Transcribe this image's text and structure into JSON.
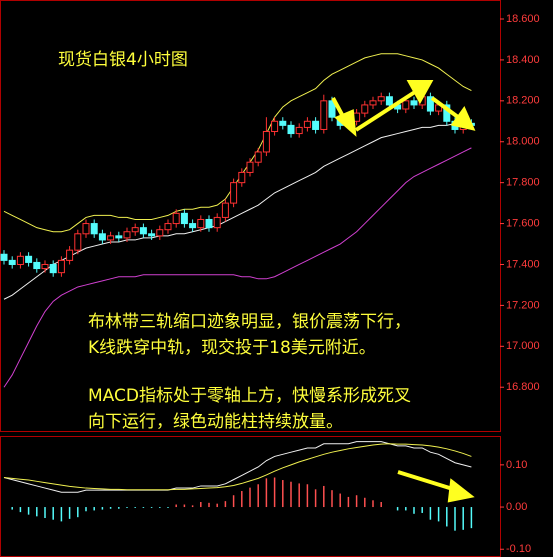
{
  "chart_data": [
    {
      "type": "candlestick",
      "title": "现货白银4小时图",
      "annotations": [
        "布林带三轨缩口迹象明显，银价震荡下行，",
        "K线跌穿中轨，现交投于18美元附近。",
        "MACD指标处于零轴上方，快慢系形成死叉",
        "向下运行，绿色动能柱持续放量。"
      ],
      "open": [
        17.45,
        17.42,
        17.4,
        17.44,
        17.41,
        17.38,
        17.4,
        17.36,
        17.42,
        17.47,
        17.55,
        17.6,
        17.55,
        17.52,
        17.54,
        17.53,
        17.56,
        17.58,
        17.55,
        17.54,
        17.57,
        17.6,
        17.65,
        17.6,
        17.58,
        17.62,
        17.58,
        17.63,
        17.7,
        17.8,
        17.85,
        17.9,
        17.95,
        18.05,
        18.1,
        18.08,
        18.04,
        18.07,
        18.1,
        18.06,
        18.2,
        18.12,
        18.08,
        18.1,
        18.14,
        18.18,
        18.2,
        18.22,
        18.18,
        18.16,
        18.2,
        18.18,
        18.22,
        18.15,
        18.18,
        18.1,
        18.06,
        18.09
      ],
      "high": [
        17.47,
        17.44,
        17.46,
        17.46,
        17.43,
        17.42,
        17.42,
        17.44,
        17.49,
        17.57,
        17.62,
        17.62,
        17.57,
        17.56,
        17.56,
        17.58,
        17.6,
        17.6,
        17.57,
        17.59,
        17.62,
        17.67,
        17.67,
        17.62,
        17.64,
        17.64,
        17.65,
        17.72,
        17.82,
        17.87,
        17.92,
        17.97,
        18.12,
        18.12,
        18.12,
        18.1,
        18.09,
        18.12,
        18.12,
        18.23,
        18.22,
        18.14,
        18.12,
        18.16,
        18.2,
        18.22,
        18.24,
        18.24,
        18.2,
        18.22,
        18.22,
        18.24,
        18.24,
        18.2,
        18.2,
        18.12,
        18.11,
        18.11
      ],
      "low": [
        17.4,
        17.38,
        17.38,
        17.39,
        17.36,
        17.36,
        17.34,
        17.34,
        17.4,
        17.45,
        17.53,
        17.53,
        17.5,
        17.5,
        17.51,
        17.51,
        17.54,
        17.53,
        17.52,
        17.52,
        17.55,
        17.58,
        17.58,
        17.56,
        17.56,
        17.56,
        17.56,
        17.61,
        17.68,
        17.78,
        17.83,
        17.88,
        17.93,
        18.03,
        18.06,
        18.02,
        18.02,
        18.05,
        18.04,
        18.04,
        18.1,
        18.06,
        18.06,
        18.08,
        18.12,
        18.16,
        18.18,
        18.16,
        18.14,
        18.14,
        18.16,
        18.16,
        18.13,
        18.13,
        18.08,
        18.04,
        18.04,
        18.06
      ],
      "close": [
        17.42,
        17.4,
        17.44,
        17.41,
        17.38,
        17.4,
        17.36,
        17.42,
        17.47,
        17.55,
        17.6,
        17.55,
        17.52,
        17.54,
        17.53,
        17.56,
        17.58,
        17.55,
        17.54,
        17.57,
        17.6,
        17.65,
        17.6,
        17.58,
        17.62,
        17.58,
        17.63,
        17.7,
        17.8,
        17.85,
        17.9,
        17.95,
        18.05,
        18.1,
        18.08,
        18.04,
        18.07,
        18.1,
        18.06,
        18.2,
        18.12,
        18.08,
        18.1,
        18.14,
        18.18,
        18.2,
        18.22,
        18.18,
        18.16,
        18.2,
        18.18,
        18.22,
        18.15,
        18.18,
        18.1,
        18.06,
        18.09,
        18.08
      ],
      "up_color": "#ff3232",
      "down_color": "#54fcfc",
      "series": [
        {
          "color": "#f0f050",
          "values": [
            17.66,
            17.64,
            17.62,
            17.6,
            17.58,
            17.57,
            17.56,
            17.56,
            17.57,
            17.6,
            17.63,
            17.64,
            17.64,
            17.64,
            17.63,
            17.63,
            17.62,
            17.62,
            17.62,
            17.63,
            17.64,
            17.66,
            17.67,
            17.67,
            17.68,
            17.68,
            17.69,
            17.72,
            17.78,
            17.84,
            17.9,
            17.96,
            18.04,
            18.12,
            18.17,
            18.2,
            18.22,
            18.24,
            18.26,
            18.3,
            18.33,
            18.35,
            18.37,
            18.39,
            18.41,
            18.42,
            18.43,
            18.43,
            18.43,
            18.42,
            18.41,
            18.4,
            18.38,
            18.36,
            18.33,
            18.3,
            18.27,
            18.25
          ]
        },
        {
          "color": "#f0f0f0",
          "values": [
            17.23,
            17.25,
            17.28,
            17.31,
            17.34,
            17.37,
            17.4,
            17.42,
            17.44,
            17.46,
            17.48,
            17.49,
            17.5,
            17.51,
            17.51,
            17.52,
            17.52,
            17.53,
            17.53,
            17.54,
            17.54,
            17.55,
            17.55,
            17.56,
            17.57,
            17.58,
            17.59,
            17.61,
            17.63,
            17.65,
            17.67,
            17.69,
            17.72,
            17.75,
            17.77,
            17.79,
            17.81,
            17.83,
            17.85,
            17.88,
            17.9,
            17.92,
            17.94,
            17.96,
            17.98,
            18.0,
            18.02,
            18.03,
            18.04,
            18.05,
            18.06,
            18.07,
            18.07,
            18.08,
            18.08,
            18.09,
            18.09,
            18.1
          ]
        },
        {
          "color": "#d040d0",
          "values": [
            16.8,
            16.86,
            16.94,
            17.02,
            17.1,
            17.17,
            17.22,
            17.25,
            17.27,
            17.29,
            17.3,
            17.31,
            17.32,
            17.33,
            17.34,
            17.34,
            17.34,
            17.35,
            17.35,
            17.35,
            17.35,
            17.35,
            17.35,
            17.35,
            17.35,
            17.35,
            17.35,
            17.35,
            17.35,
            17.34,
            17.34,
            17.33,
            17.33,
            17.34,
            17.36,
            17.38,
            17.4,
            17.42,
            17.44,
            17.46,
            17.48,
            17.5,
            17.53,
            17.56,
            17.6,
            17.64,
            17.68,
            17.72,
            17.76,
            17.8,
            17.83,
            17.85,
            17.87,
            17.89,
            17.91,
            17.93,
            17.95,
            17.97
          ]
        }
      ],
      "ylim": [
        16.586,
        18.688
      ],
      "yticks": [
        {
          "value": 16.8,
          "label": "16.800"
        },
        {
          "value": 17.0,
          "label": "17.000"
        },
        {
          "value": 17.2,
          "label": "17.200"
        },
        {
          "value": 17.4,
          "label": "17.400"
        },
        {
          "value": 17.6,
          "label": "17.600"
        },
        {
          "value": 17.8,
          "label": "17.800"
        },
        {
          "value": 18.0,
          "label": "18.000"
        },
        {
          "value": 18.2,
          "label": "18.200"
        },
        {
          "value": 18.4,
          "label": "18.400"
        },
        {
          "value": 18.6,
          "label": "18.600"
        }
      ]
    },
    {
      "type": "macd",
      "histogram": [
        0,
        -0.006,
        -0.012,
        -0.018,
        -0.022,
        -0.026,
        -0.03,
        -0.034,
        -0.028,
        -0.024,
        -0.01,
        -0.008,
        -0.006,
        -0.004,
        -0.004,
        -0.002,
        -0.002,
        -0.002,
        -0.002,
        -0.002,
        -0.002,
        0.006,
        0.006,
        0.004,
        0.012,
        0.01,
        0.008,
        0.014,
        0.028,
        0.038,
        0.046,
        0.054,
        0.068,
        0.07,
        0.064,
        0.06,
        0.056,
        0.054,
        0.042,
        0.05,
        0.04,
        0.032,
        0.024,
        0.028,
        0.022,
        0.016,
        0.012,
        0,
        -0.008,
        -0.008,
        -0.016,
        -0.014,
        -0.03,
        -0.034,
        -0.046,
        -0.056,
        -0.054,
        -0.05
      ],
      "up_color": "#ff5050",
      "down_color": "#54fcfc",
      "series": [
        {
          "color": "#f0f0f0",
          "values": [
            0.07,
            0.065,
            0.06,
            0.055,
            0.05,
            0.045,
            0.04,
            0.035,
            0.035,
            0.035,
            0.04,
            0.04,
            0.04,
            0.04,
            0.04,
            0.04,
            0.04,
            0.04,
            0.04,
            0.04,
            0.04,
            0.045,
            0.045,
            0.045,
            0.05,
            0.05,
            0.05,
            0.055,
            0.065,
            0.075,
            0.085,
            0.095,
            0.11,
            0.12,
            0.125,
            0.13,
            0.135,
            0.14,
            0.14,
            0.15,
            0.15,
            0.15,
            0.15,
            0.155,
            0.155,
            0.155,
            0.155,
            0.15,
            0.145,
            0.145,
            0.14,
            0.14,
            0.13,
            0.125,
            0.115,
            0.105,
            0.1,
            0.095
          ]
        },
        {
          "color": "#f0f050",
          "values": [
            0.07,
            0.068,
            0.066,
            0.064,
            0.061,
            0.058,
            0.055,
            0.052,
            0.049,
            0.047,
            0.045,
            0.044,
            0.043,
            0.042,
            0.042,
            0.041,
            0.041,
            0.041,
            0.041,
            0.041,
            0.041,
            0.042,
            0.042,
            0.043,
            0.044,
            0.045,
            0.046,
            0.048,
            0.051,
            0.056,
            0.062,
            0.068,
            0.076,
            0.085,
            0.093,
            0.1,
            0.107,
            0.113,
            0.119,
            0.125,
            0.13,
            0.134,
            0.138,
            0.141,
            0.144,
            0.147,
            0.149,
            0.15,
            0.149,
            0.149,
            0.148,
            0.147,
            0.145,
            0.142,
            0.138,
            0.133,
            0.127,
            0.12
          ]
        }
      ],
      "ylim": [
        -0.116,
        0.166
      ],
      "yticks": [
        {
          "value": -0.1,
          "label": "-0.10"
        },
        {
          "value": 0.0,
          "label": "0.00"
        },
        {
          "value": 0.1,
          "label": "0.10"
        }
      ]
    }
  ]
}
